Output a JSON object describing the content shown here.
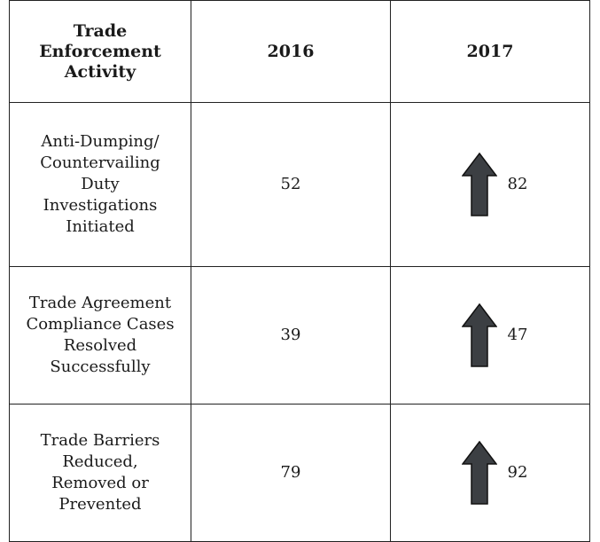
{
  "table": {
    "header": [
      "Trade Enforcement Activity",
      "2016",
      "2017"
    ],
    "rows": [
      [
        "Anti-Dumping/ Countervailing Duty Investigations Initiated",
        "52",
        "82"
      ],
      [
        "Trade Agreement Compliance Cases Resolved Successfully",
        "39",
        "47"
      ],
      [
        "Trade Barriers Reduced, Removed or Prevented",
        "79",
        "92"
      ]
    ]
  }
}
